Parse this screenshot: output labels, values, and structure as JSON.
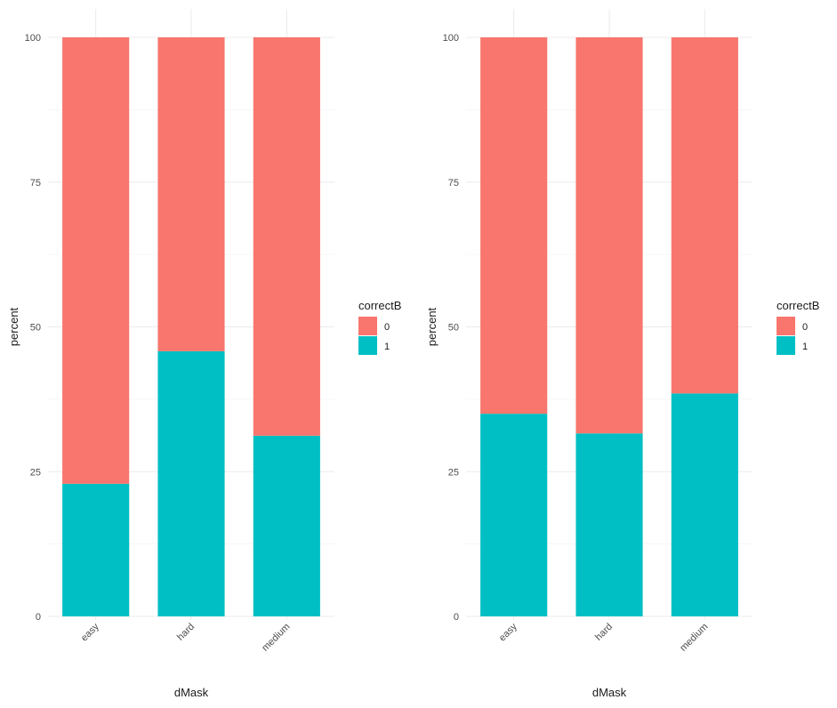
{
  "colors": {
    "level_0": "#F8766D",
    "level_1": "#00BFC4",
    "grid_major": "#EBEBEB",
    "grid_minor": "#F4F4F4"
  },
  "chart_data": [
    {
      "type": "bar",
      "stacked": true,
      "categories": [
        "easy",
        "hard",
        "medium"
      ],
      "series": [
        {
          "name": "0",
          "values": [
            77.1,
            54.2,
            68.8
          ]
        },
        {
          "name": "1",
          "values": [
            22.9,
            45.8,
            31.2
          ]
        }
      ],
      "xlabel": "dMask",
      "ylabel": "percent",
      "ylim": [
        0,
        100
      ],
      "yticks": [
        0,
        25,
        50,
        75,
        100
      ],
      "legend": {
        "title": "correctB",
        "labels": [
          "0",
          "1"
        ],
        "position": "right"
      },
      "grid": true
    },
    {
      "type": "bar",
      "stacked": true,
      "categories": [
        "easy",
        "hard",
        "medium"
      ],
      "series": [
        {
          "name": "0",
          "values": [
            65.0,
            68.4,
            61.5
          ]
        },
        {
          "name": "1",
          "values": [
            35.0,
            31.6,
            38.5
          ]
        }
      ],
      "xlabel": "dMask",
      "ylabel": "percent",
      "ylim": [
        0,
        100
      ],
      "yticks": [
        0,
        25,
        50,
        75,
        100
      ],
      "legend": {
        "title": "correctB",
        "labels": [
          "0",
          "1"
        ],
        "position": "right"
      },
      "grid": true
    }
  ]
}
